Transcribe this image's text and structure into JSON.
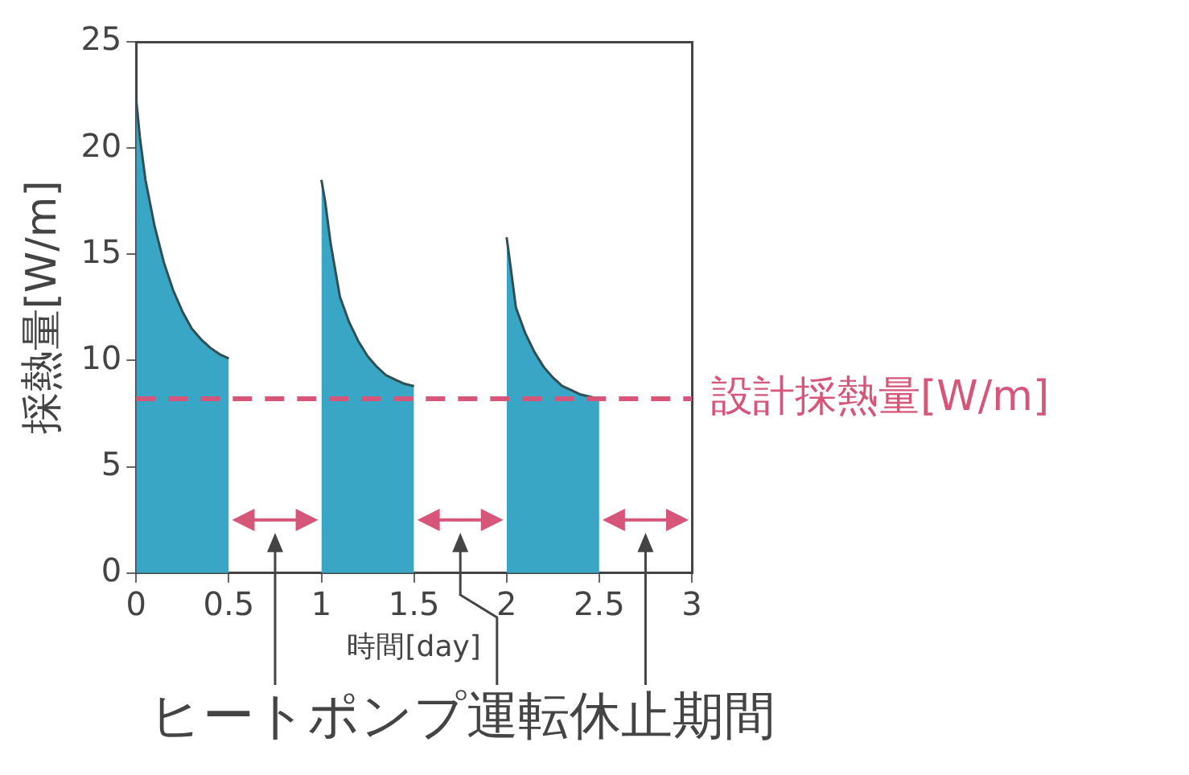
{
  "chart_data": {
    "type": "area",
    "xlabel": "時間[day]",
    "ylabel": "採熱量[W/m]",
    "xlim": [
      0,
      3
    ],
    "xticks": [
      0,
      0.5,
      1,
      1.5,
      2,
      2.5,
      3
    ],
    "ylim": [
      0,
      25
    ],
    "yticks": [
      0,
      5,
      10,
      15,
      20,
      25
    ],
    "grid": false,
    "series": [
      {
        "color": "#3aa6c6",
        "x": [
          0,
          0.02,
          0.05,
          0.1,
          0.15,
          0.2,
          0.25,
          0.3,
          0.35,
          0.4,
          0.45,
          0.5
        ],
        "values": [
          22.3,
          20.5,
          18.5,
          16.3,
          14.6,
          13.3,
          12.3,
          11.5,
          11.0,
          10.6,
          10.3,
          10.1
        ]
      },
      {
        "color": "#3aa6c6",
        "x": [
          1,
          1.02,
          1.05,
          1.1,
          1.15,
          1.2,
          1.25,
          1.3,
          1.35,
          1.4,
          1.45,
          1.5
        ],
        "values": [
          18.5,
          17.5,
          15.5,
          13.0,
          11.8,
          10.9,
          10.2,
          9.7,
          9.3,
          9.1,
          8.9,
          8.8
        ]
      },
      {
        "color": "#3aa6c6",
        "x": [
          2,
          2.02,
          2.05,
          2.1,
          2.15,
          2.2,
          2.25,
          2.3,
          2.35,
          2.4,
          2.45,
          2.5
        ],
        "values": [
          15.8,
          14.5,
          12.5,
          11.3,
          10.4,
          9.7,
          9.2,
          8.8,
          8.6,
          8.4,
          8.3,
          8.2
        ]
      }
    ],
    "ref_lines": [
      {
        "axis": "y",
        "value": 8.2,
        "label": "設計採熱量[W/m]",
        "color": "#d6567a",
        "line_style": "dashed"
      }
    ],
    "annotations": [
      "ヒートポンプ運転休止期間"
    ]
  }
}
